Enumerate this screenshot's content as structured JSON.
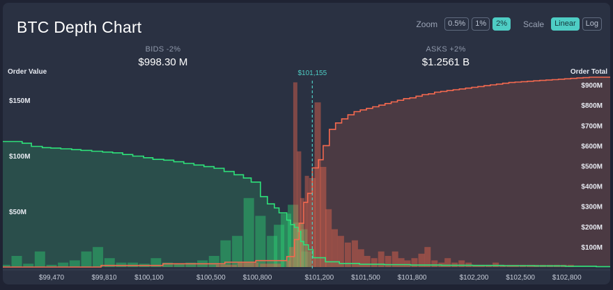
{
  "header": {
    "title": "BTC Depth Chart",
    "zoom_label": "Zoom",
    "zoom_options": [
      "0.5%",
      "1%",
      "2%"
    ],
    "zoom_selected": "2%",
    "scale_label": "Scale",
    "scale_options": [
      "Linear",
      "Log"
    ],
    "scale_selected": "Linear"
  },
  "stats": {
    "bids_label": "BIDS -2%",
    "bids_value": "$998.30 M",
    "asks_label": "ASKS +2%",
    "asks_value": "$1.2561 B"
  },
  "colors": {
    "bid": "#2ee27a",
    "ask": "#f5694f",
    "mid": "#4ecdc4"
  },
  "chart_data": {
    "type": "area",
    "title": "BTC Depth Chart",
    "mid_price": 101155,
    "mid_price_label": "$101,155",
    "x_ticks": [
      99470,
      99810,
      100100,
      100500,
      100800,
      101200,
      101500,
      101800,
      102200,
      102500,
      102800
    ],
    "x_tick_labels": [
      "$99,470",
      "$99,810",
      "$100,100",
      "$100,500",
      "$100,800",
      "$101,200",
      "$101,500",
      "$101,800",
      "$102,200",
      "$102,500",
      "$102,800"
    ],
    "left_axis": {
      "label": "Order Value",
      "ticks": [
        50,
        100,
        150
      ],
      "tick_labels": [
        "$50M",
        "$100M",
        "$150M"
      ],
      "range": [
        0,
        175
      ],
      "unit": "M"
    },
    "right_axis": {
      "label": "Order Total",
      "ticks": [
        100,
        200,
        300,
        400,
        500,
        600,
        700,
        800,
        900
      ],
      "tick_labels": [
        "$100M",
        "$200M",
        "$300M",
        "$400M",
        "$500M",
        "$600M",
        "$700M",
        "$800M",
        "$900M"
      ],
      "range": [
        0,
        962
      ],
      "unit": "M"
    },
    "bids_cumulative": {
      "name": "Bids",
      "x": [
        99155,
        99280,
        99340,
        99410,
        99465,
        99530,
        99600,
        99660,
        99730,
        99800,
        99865,
        99930,
        99995,
        100065,
        100125,
        100195,
        100260,
        100325,
        100390,
        100455,
        100520,
        100585,
        100650,
        100710,
        100760,
        100820,
        100865,
        100910,
        100940,
        100990,
        101015,
        101040,
        101065,
        101080,
        101100,
        101130,
        101160,
        101240,
        101330,
        101460,
        101620,
        101790,
        101990,
        102190,
        102390,
        102590,
        102790,
        102990
      ],
      "y": [
        620,
        612,
        596,
        590,
        588,
        584,
        580,
        576,
        572,
        568,
        564,
        556,
        548,
        540,
        532,
        528,
        520,
        512,
        504,
        496,
        488,
        472,
        456,
        440,
        420,
        348,
        312,
        292,
        268,
        232,
        210,
        196,
        176,
        126,
        110,
        86,
        46,
        26,
        18,
        14,
        12,
        10,
        9,
        8,
        7,
        6,
        4,
        2
      ]
    },
    "asks_cumulative": {
      "name": "Asks",
      "x": [
        99155,
        99600,
        99790,
        100190,
        100590,
        100790,
        100990,
        101040,
        101070,
        101100,
        101125,
        101155,
        101195,
        101225,
        101265,
        101305,
        101345,
        101385,
        101425,
        101465,
        101505,
        101545,
        101585,
        101625,
        101665,
        101705,
        101745,
        101785,
        101825,
        101865,
        101905,
        101945,
        101985,
        102025,
        102065,
        102105,
        102145,
        102185,
        102225,
        102265,
        102305,
        102345,
        102385,
        102425,
        102465,
        102505,
        102545,
        102585,
        102625,
        102665,
        102705,
        102745,
        102785,
        102825,
        102865,
        102905,
        102945
      ],
      "y": [
        0,
        0,
        8,
        16,
        24,
        32,
        52,
        136,
        216,
        320,
        364,
        490,
        530,
        600,
        680,
        712,
        732,
        752,
        768,
        776,
        784,
        792,
        800,
        808,
        816,
        824,
        832,
        836,
        844,
        852,
        856,
        864,
        868,
        872,
        876,
        880,
        884,
        888,
        892,
        896,
        900,
        904,
        908,
        912,
        914,
        916,
        918,
        920,
        922,
        924,
        926,
        928,
        930,
        932,
        934,
        936,
        938
      ]
    },
    "bid_bars": {
      "name": "Bid order value",
      "x": [
        99170,
        99245,
        99320,
        99395,
        99470,
        99545,
        99620,
        99695,
        99770,
        99845,
        99920,
        99995,
        100070,
        100145,
        100220,
        100295,
        100370,
        100445,
        100520,
        100595,
        100670,
        100745,
        100820,
        100895,
        100940,
        100985,
        101030,
        101065,
        101090,
        101115
      ],
      "y": [
        2,
        10,
        3,
        14,
        2,
        4,
        6,
        14,
        18,
        8,
        4,
        4,
        3,
        8,
        4,
        3,
        4,
        6,
        10,
        24,
        28,
        62,
        46,
        28,
        38,
        48,
        56,
        40,
        34,
        14
      ]
    },
    "ask_bars": {
      "name": "Ask order value",
      "x": [
        100600,
        100740,
        100885,
        101000,
        101020,
        101045,
        101070,
        101090,
        101120,
        101155,
        101190,
        101225,
        101260,
        101300,
        101340,
        101385,
        101430,
        101470,
        101510,
        101555,
        101600,
        101645,
        101690,
        101730,
        101770,
        101815,
        101860,
        101900,
        101945,
        101990,
        102030,
        102075,
        102120,
        102165,
        102210,
        102250,
        102295,
        102340,
        102385,
        102430,
        102470,
        102515,
        102560,
        102600,
        102645,
        102690,
        102735,
        102780,
        102825
      ],
      "y": [
        2,
        4,
        3,
        6,
        18,
        166,
        104,
        62,
        82,
        80,
        148,
        90,
        52,
        34,
        28,
        22,
        24,
        16,
        10,
        8,
        14,
        10,
        14,
        8,
        6,
        8,
        12,
        18,
        6,
        4,
        8,
        4,
        6,
        4,
        2,
        2,
        2,
        4,
        2,
        2,
        2,
        2,
        2,
        2,
        2,
        2,
        2,
        2,
        2
      ]
    }
  }
}
